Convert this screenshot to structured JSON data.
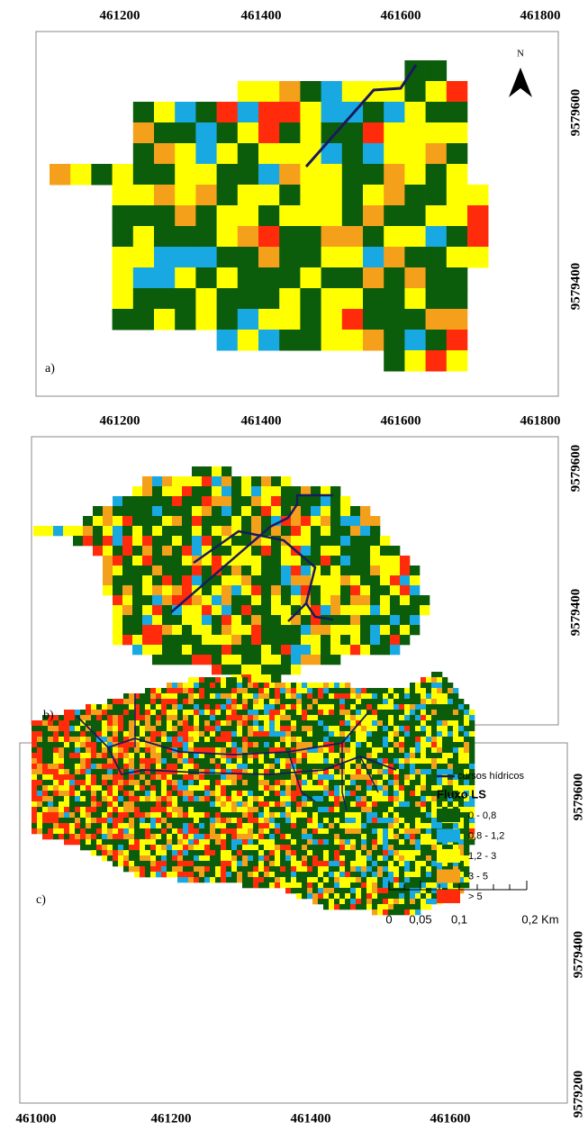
{
  "panels": [
    {
      "label": "a)",
      "north": "N",
      "xticks": [
        "461200",
        "461400",
        "461600",
        "461800"
      ],
      "yticks": [
        "9579600",
        "9579400"
      ]
    },
    {
      "label": "b)",
      "xticks": [
        "461200",
        "461400",
        "461600",
        "461800"
      ],
      "yticks": [
        "9579600",
        "9579400"
      ]
    },
    {
      "label": "c)",
      "xticks": [
        "461000",
        "461200",
        "461400",
        "461600"
      ],
      "yticks": [
        "9579600",
        "9579400",
        "9579200"
      ],
      "legend": {
        "stream": "cursos hídricos",
        "title": "Fluxo LS",
        "classes": [
          {
            "label": "0 - 0,8",
            "color": "#0b5d0b"
          },
          {
            "label": "0,8 - 1,2",
            "color": "#19a9e2"
          },
          {
            "label": "1,2 - 3",
            "color": "#ffff00"
          },
          {
            "label": "3 - 5",
            "color": "#f5a01a"
          },
          {
            "label": "> 5",
            "color": "#ff2b0a"
          }
        ]
      },
      "scale": [
        "0",
        "0,05",
        "0,1",
        "0,2 Km"
      ]
    }
  ]
}
